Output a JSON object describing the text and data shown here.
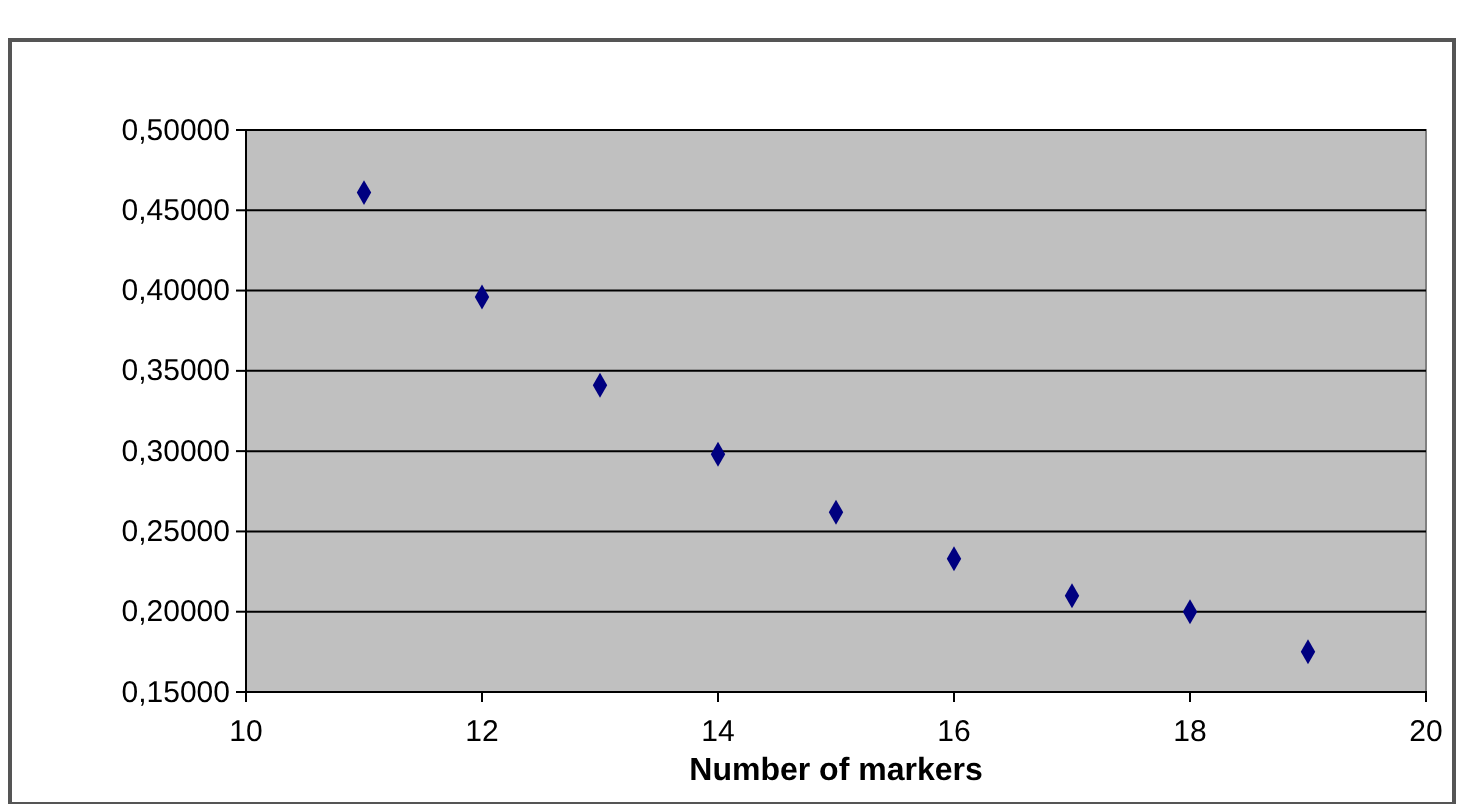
{
  "chart_data": {
    "type": "scatter",
    "xlabel": "Number of markers",
    "marker": "diamond",
    "grid": "y",
    "x": [
      11,
      12,
      13,
      14,
      15,
      16,
      17,
      18,
      19
    ],
    "series": [
      {
        "color": "#000080",
        "values": [
          0.461,
          0.396,
          0.341,
          0.298,
          0.262,
          0.233,
          0.21,
          0.2,
          0.175
        ]
      }
    ],
    "xlim": [
      10,
      20
    ],
    "xticks": [
      10,
      12,
      14,
      16,
      18,
      20
    ],
    "ylim": [
      0.15,
      0.5
    ],
    "yticks": [
      {
        "value": 0.15,
        "label": "0,15000"
      },
      {
        "value": 0.2,
        "label": "0,20000"
      },
      {
        "value": 0.25,
        "label": "0,25000"
      },
      {
        "value": 0.3,
        "label": "0,30000"
      },
      {
        "value": 0.35,
        "label": "0,35000"
      },
      {
        "value": 0.4,
        "label": "0,40000"
      },
      {
        "value": 0.45,
        "label": "0,45000"
      },
      {
        "value": 0.5,
        "label": "0,50000"
      }
    ]
  }
}
